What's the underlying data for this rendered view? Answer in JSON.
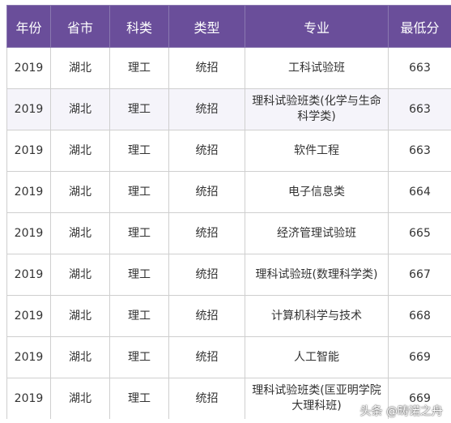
{
  "header": {
    "year": "年份",
    "province": "省市",
    "subject": "科类",
    "type": "类型",
    "major": "专业",
    "min_score": "最低分"
  },
  "rows": [
    {
      "year": "2019",
      "province": "湖北",
      "subject": "理工",
      "type": "统招",
      "major": "工科试验班",
      "min_score": "663"
    },
    {
      "year": "2019",
      "province": "湖北",
      "subject": "理工",
      "type": "统招",
      "major": "理科试验班类(化学与生命科学类)",
      "min_score": "663"
    },
    {
      "year": "2019",
      "province": "湖北",
      "subject": "理工",
      "type": "统招",
      "major": "软件工程",
      "min_score": "663"
    },
    {
      "year": "2019",
      "province": "湖北",
      "subject": "理工",
      "type": "统招",
      "major": "电子信息类",
      "min_score": "664"
    },
    {
      "year": "2019",
      "province": "湖北",
      "subject": "理工",
      "type": "统招",
      "major": "经济管理试验班",
      "min_score": "665"
    },
    {
      "year": "2019",
      "province": "湖北",
      "subject": "理工",
      "type": "统招",
      "major": "理科试验班(数理科学类)",
      "min_score": "667"
    },
    {
      "year": "2019",
      "province": "湖北",
      "subject": "理工",
      "type": "统招",
      "major": "计算机科学与技术",
      "min_score": "668"
    },
    {
      "year": "2019",
      "province": "湖北",
      "subject": "理工",
      "type": "统招",
      "major": "人工智能",
      "min_score": "669"
    },
    {
      "year": "2019",
      "province": "湖北",
      "subject": "理工",
      "type": "统招",
      "major": "理科试验班类(匡亚明学院大理科班)",
      "min_score": "669"
    }
  ],
  "watermark": "头条 @畴诺之舟",
  "colors": {
    "header_bg": "#6a4e9a",
    "alt_row_bg": "#f5f4fa"
  }
}
